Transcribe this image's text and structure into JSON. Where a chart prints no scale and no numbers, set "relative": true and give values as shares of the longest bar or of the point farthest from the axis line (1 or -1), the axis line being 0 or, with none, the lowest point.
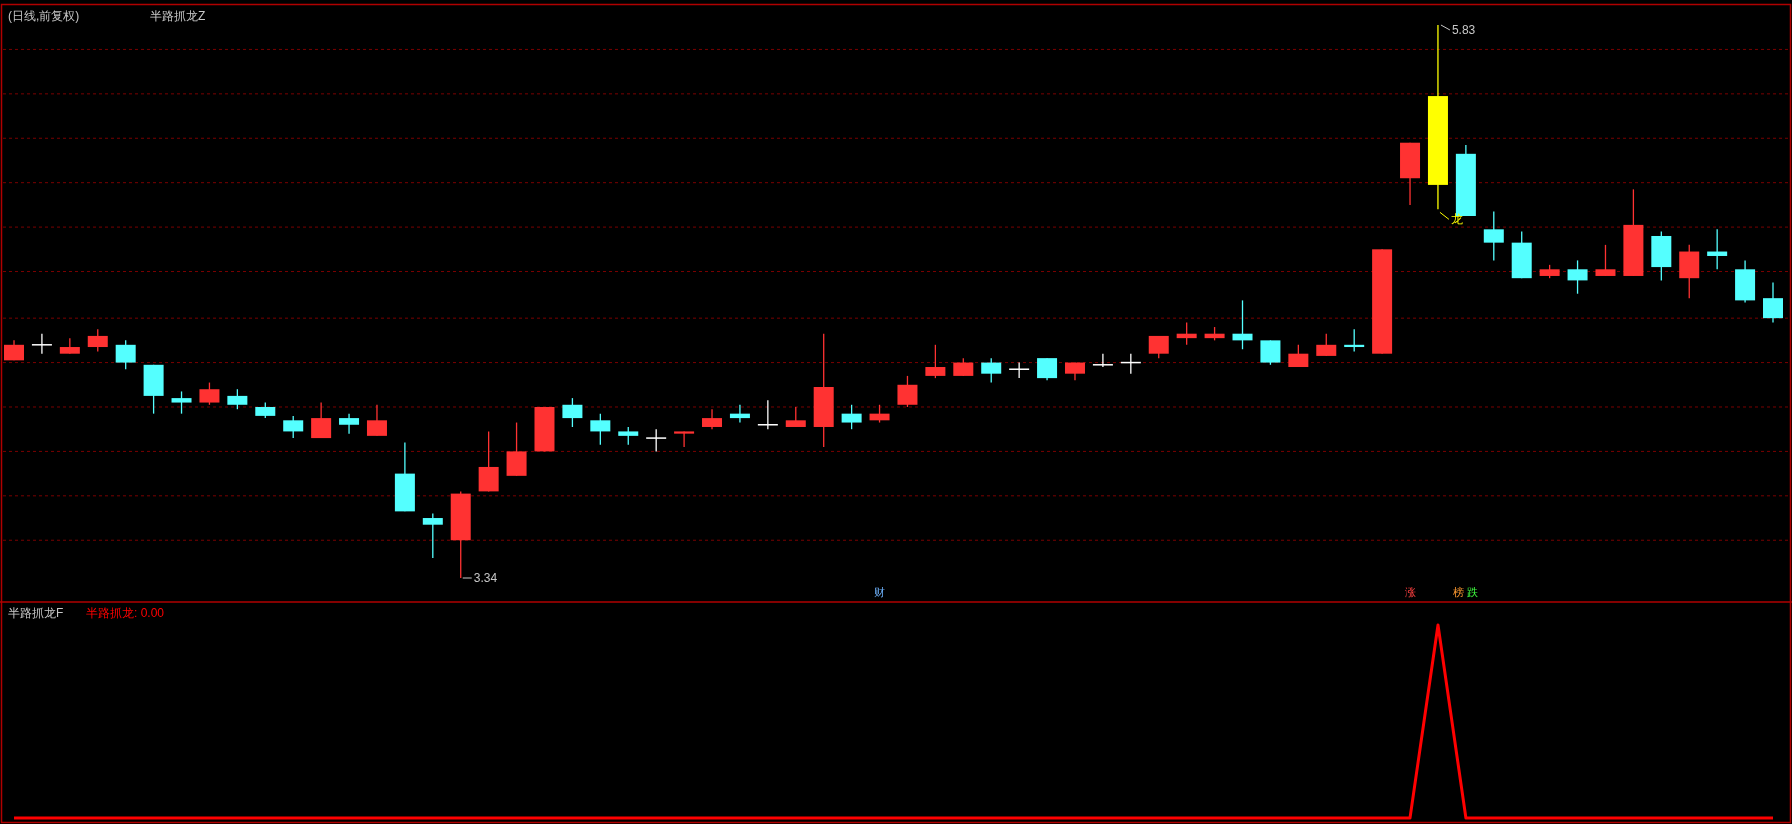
{
  "chart_data": [
    {
      "type": "candlestick",
      "title": "(日线,前复权)",
      "subtitle": "半路抓龙Z",
      "grid": true,
      "yticks": [
        {
          "value": 5.72,
          "label": null
        },
        {
          "value": 5.52,
          "label": null
        },
        {
          "value": 5.32,
          "label": null
        },
        {
          "value": 5.12,
          "label": null
        },
        {
          "value": 4.92,
          "label": null
        },
        {
          "value": 4.72,
          "label": null
        },
        {
          "value": 4.51,
          "label": null
        },
        {
          "value": 4.31,
          "label": null
        },
        {
          "value": 4.11,
          "label": null
        },
        {
          "value": 3.91,
          "label": null
        },
        {
          "value": 3.71,
          "label": null
        },
        {
          "value": 3.51,
          "label": null
        }
      ],
      "categories": [
        null,
        null,
        null,
        null,
        null,
        null,
        null,
        null,
        null,
        null,
        null,
        null,
        null,
        null,
        null,
        null,
        null,
        null,
        null,
        null,
        null,
        null,
        null,
        null,
        null,
        null,
        null,
        null,
        null,
        null,
        null,
        null,
        null,
        null,
        null,
        null,
        null,
        null,
        null,
        null,
        null,
        null,
        null,
        null,
        null,
        null,
        null,
        null,
        null,
        null,
        null,
        null,
        null,
        null,
        null,
        null,
        null,
        null,
        null,
        null,
        null,
        null,
        null,
        null
      ],
      "ohlc": [
        [
          4.32,
          4.41,
          4.32,
          4.39
        ],
        [
          4.39,
          4.44,
          4.35,
          4.39
        ],
        [
          4.35,
          4.42,
          4.35,
          4.38
        ],
        [
          4.38,
          4.46,
          4.36,
          4.43
        ],
        [
          4.39,
          4.41,
          4.28,
          4.31
        ],
        [
          4.3,
          4.3,
          4.08,
          4.16
        ],
        [
          4.15,
          4.18,
          4.08,
          4.13
        ],
        [
          4.13,
          4.22,
          4.12,
          4.19
        ],
        [
          4.16,
          4.19,
          4.1,
          4.12
        ],
        [
          4.11,
          4.13,
          4.06,
          4.07
        ],
        [
          4.05,
          4.07,
          3.97,
          4.0
        ],
        [
          3.97,
          4.13,
          3.97,
          4.06
        ],
        [
          4.06,
          4.08,
          3.99,
          4.03
        ],
        [
          3.98,
          4.12,
          3.98,
          4.05
        ],
        [
          3.81,
          3.95,
          3.64,
          3.64
        ],
        [
          3.61,
          3.63,
          3.43,
          3.58
        ],
        [
          3.51,
          3.73,
          3.34,
          3.72
        ],
        [
          3.73,
          4.0,
          3.73,
          3.84
        ],
        [
          3.8,
          4.04,
          3.8,
          3.91
        ],
        [
          3.91,
          4.11,
          3.91,
          4.11
        ],
        [
          4.12,
          4.15,
          4.02,
          4.06
        ],
        [
          4.05,
          4.08,
          3.94,
          4.0
        ],
        [
          4.0,
          4.02,
          3.94,
          3.98
        ],
        [
          3.97,
          4.01,
          3.91,
          3.97
        ],
        [
          3.99,
          4.0,
          3.93,
          4.0
        ],
        [
          4.02,
          4.1,
          4.01,
          4.06
        ],
        [
          4.08,
          4.12,
          4.04,
          4.06
        ],
        [
          4.03,
          4.14,
          4.01,
          4.03
        ],
        [
          4.02,
          4.11,
          4.02,
          4.05
        ],
        [
          4.02,
          4.44,
          3.93,
          4.2
        ],
        [
          4.08,
          4.12,
          4.01,
          4.04
        ],
        [
          4.05,
          4.12,
          4.04,
          4.08
        ],
        [
          4.12,
          4.25,
          4.11,
          4.21
        ],
        [
          4.25,
          4.39,
          4.24,
          4.29
        ],
        [
          4.25,
          4.33,
          4.25,
          4.31
        ],
        [
          4.31,
          4.33,
          4.22,
          4.26
        ],
        [
          4.28,
          4.31,
          4.24,
          4.28
        ],
        [
          4.33,
          4.33,
          4.23,
          4.24
        ],
        [
          4.26,
          4.31,
          4.23,
          4.31
        ],
        [
          4.3,
          4.35,
          4.29,
          4.3
        ],
        [
          4.31,
          4.35,
          4.26,
          4.31
        ],
        [
          4.35,
          4.43,
          4.33,
          4.43
        ],
        [
          4.42,
          4.49,
          4.39,
          4.44
        ],
        [
          4.42,
          4.47,
          4.41,
          4.44
        ],
        [
          4.44,
          4.59,
          4.37,
          4.41
        ],
        [
          4.41,
          4.41,
          4.3,
          4.31
        ],
        [
          4.29,
          4.39,
          4.29,
          4.35
        ],
        [
          4.34,
          4.44,
          4.34,
          4.39
        ],
        [
          4.39,
          4.46,
          4.36,
          4.38
        ],
        [
          4.35,
          4.82,
          4.35,
          4.82
        ],
        [
          5.14,
          5.3,
          5.02,
          5.3
        ],
        [
          5.11,
          5.83,
          5.0,
          5.51
        ],
        [
          5.25,
          5.29,
          4.97,
          4.97
        ],
        [
          4.91,
          4.99,
          4.77,
          4.85
        ],
        [
          4.85,
          4.9,
          4.69,
          4.69
        ],
        [
          4.7,
          4.75,
          4.69,
          4.73
        ],
        [
          4.73,
          4.77,
          4.62,
          4.68
        ],
        [
          4.7,
          4.84,
          4.7,
          4.73
        ],
        [
          4.7,
          5.09,
          4.7,
          4.93
        ],
        [
          4.88,
          4.9,
          4.68,
          4.74
        ],
        [
          4.69,
          4.84,
          4.6,
          4.81
        ],
        [
          4.81,
          4.91,
          4.73,
          4.79
        ],
        [
          4.73,
          4.77,
          4.58,
          4.59
        ],
        [
          4.6,
          4.67,
          4.49,
          4.51
        ]
      ],
      "colors": [
        "#ff3232",
        "#ffffff",
        "#ff3232",
        "#ff3232",
        "#54ffff",
        "#54ffff",
        "#54ffff",
        "#ff3232",
        "#54ffff",
        "#54ffff",
        "#54ffff",
        "#ff3232",
        "#54ffff",
        "#ff3232",
        "#54ffff",
        "#54ffff",
        "#ff3232",
        "#ff3232",
        "#ff3232",
        "#ff3232",
        "#54ffff",
        "#54ffff",
        "#54ffff",
        "#ffffff",
        "#ff3232",
        "#ff3232",
        "#54ffff",
        "#ffffff",
        "#ff3232",
        "#ff3232",
        "#54ffff",
        "#ff3232",
        "#ff3232",
        "#ff3232",
        "#ff3232",
        "#54ffff",
        "#ffffff",
        "#54ffff",
        "#ff3232",
        "#ffffff",
        "#ffffff",
        "#ff3232",
        "#ff3232",
        "#ff3232",
        "#54ffff",
        "#54ffff",
        "#ff3232",
        "#ff3232",
        "#54ffff",
        "#ff3232",
        "#ff3232",
        "#ffff00",
        "#54ffff",
        "#54ffff",
        "#54ffff",
        "#ff3232",
        "#54ffff",
        "#ff3232",
        "#ff3232",
        "#54ffff",
        "#ff3232",
        "#54ffff",
        "#54ffff",
        "#54ffff"
      ],
      "annotations": [
        "5.83",
        "3.34",
        "龙",
        "财",
        "涨",
        "榜",
        "跌"
      ]
    },
    {
      "type": "line",
      "title": "半路抓龙F",
      "relative": true,
      "color": "#ff0000",
      "categories": [
        null,
        null,
        null,
        null,
        null,
        null,
        null,
        null,
        null,
        null,
        null,
        null,
        null,
        null,
        null,
        null,
        null,
        null,
        null,
        null,
        null,
        null,
        null,
        null,
        null,
        null,
        null,
        null,
        null,
        null,
        null,
        null,
        null,
        null,
        null,
        null,
        null,
        null,
        null,
        null,
        null,
        null,
        null,
        null,
        null,
        null,
        null,
        null,
        null,
        null,
        null,
        null,
        null,
        null,
        null,
        null,
        null,
        null,
        null,
        null,
        null,
        null,
        null,
        null
      ],
      "values": [
        0,
        0,
        0,
        0,
        0,
        0,
        0,
        0,
        0,
        0,
        0,
        0,
        0,
        0,
        0,
        0,
        0,
        0,
        0,
        0,
        0,
        0,
        0,
        0,
        0,
        0,
        0,
        0,
        0,
        0,
        0,
        0,
        0,
        0,
        0,
        0,
        0,
        0,
        0,
        0,
        0,
        0,
        0,
        0,
        0,
        0,
        0,
        0,
        0,
        0,
        0,
        1,
        0,
        0,
        0,
        0,
        0,
        0,
        0,
        0,
        0,
        0,
        0,
        0
      ],
      "annotations": [
        "半路抓龙: 0.00"
      ]
    }
  ]
}
